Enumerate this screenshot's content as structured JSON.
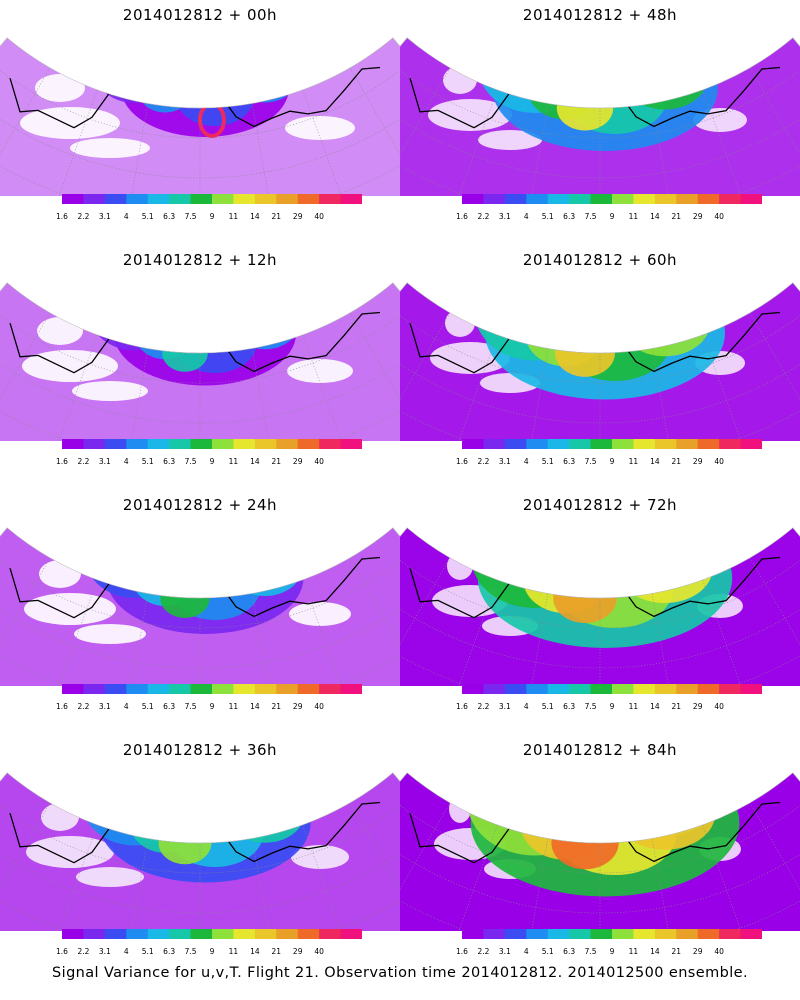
{
  "caption": "Signal Variance for u,v,T. Flight 21. Observation time 2014012812. 2014012500 ensemble.",
  "colorbar": {
    "labels": [
      "1.6",
      "2.2",
      "3.1",
      "4",
      "5.1",
      "6.3",
      "7.5",
      "9",
      "11",
      "14",
      "21",
      "29",
      "40"
    ],
    "colors": [
      "#9a00e8",
      "#7a27f0",
      "#3a4cf2",
      "#1e8cf0",
      "#19b8e6",
      "#16c8a8",
      "#1cb83c",
      "#8ee03a",
      "#e6e62e",
      "#ebc62a",
      "#e8a028",
      "#ef6a28",
      "#ef2860",
      "#f0107e"
    ]
  },
  "panels": [
    {
      "title": "2014012812 + 00h",
      "level": 0
    },
    {
      "title": "2014012812 + 48h",
      "level": 4
    },
    {
      "title": "2014012812 + 12h",
      "level": 1
    },
    {
      "title": "2014012812 + 60h",
      "level": 5
    },
    {
      "title": "2014012812 + 24h",
      "level": 2
    },
    {
      "title": "2014012812 + 72h",
      "level": 6
    },
    {
      "title": "2014012812 + 36h",
      "level": 3
    },
    {
      "title": "2014012812 + 84h",
      "level": 7
    }
  ]
}
